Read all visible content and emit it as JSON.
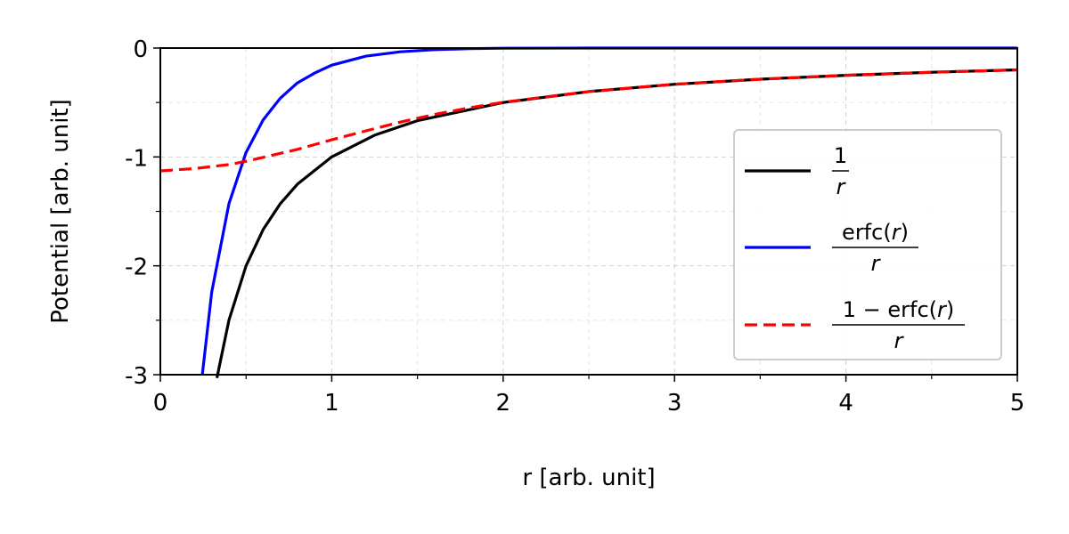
{
  "chart_data": {
    "type": "line",
    "xlabel": "r [arb. unit]",
    "ylabel": "Potential [arb. unit]",
    "xlim": [
      0,
      5
    ],
    "ylim": [
      -3,
      0
    ],
    "xticks": [
      0,
      1,
      2,
      3,
      4,
      5
    ],
    "xtick_labels": [
      "0",
      "1",
      "2",
      "3",
      "4",
      "5"
    ],
    "yticks": [
      0,
      -1,
      -2,
      -3
    ],
    "ytick_labels": [
      "0",
      "-1",
      "-2",
      "-3"
    ],
    "grid": true,
    "legend_position": "right",
    "series": [
      {
        "name": "1/r",
        "legend": {
          "numerator": "1",
          "denominator": "r"
        },
        "color": "#000000",
        "style": "solid",
        "x": [
          0.33,
          0.4,
          0.5,
          0.6,
          0.7,
          0.8,
          1.0,
          1.25,
          1.5,
          2.0,
          2.5,
          3.0,
          3.5,
          4.0,
          4.5,
          5.0
        ],
        "y": [
          -3.03,
          -2.5,
          -2.0,
          -1.667,
          -1.429,
          -1.25,
          -1.0,
          -0.8,
          -0.667,
          -0.5,
          -0.4,
          -0.333,
          -0.286,
          -0.25,
          -0.222,
          -0.2
        ]
      },
      {
        "name": "erfc(r)/r",
        "legend": {
          "numerator": "erfc(r)",
          "denominator": "r"
        },
        "color": "#0000ff",
        "style": "solid",
        "x": [
          0.245,
          0.3,
          0.4,
          0.5,
          0.6,
          0.7,
          0.8,
          0.9,
          1.0,
          1.2,
          1.4,
          1.6,
          1.8,
          2.0,
          2.5,
          3.0,
          4.0,
          5.0
        ],
        "y": [
          -3.0,
          -2.24,
          -1.43,
          -0.96,
          -0.66,
          -0.46,
          -0.32,
          -0.23,
          -0.157,
          -0.074,
          -0.034,
          -0.015,
          -0.006,
          -0.002,
          0.0,
          0.0,
          0.0,
          0.0
        ]
      },
      {
        "name": "(1-erfc(r))/r",
        "legend": {
          "numerator": "1 − erfc(r)",
          "denominator": "r"
        },
        "color": "#ff0000",
        "style": "dashed",
        "x": [
          0.0,
          0.2,
          0.4,
          0.5,
          0.6,
          0.8,
          1.0,
          1.2,
          1.4,
          1.6,
          1.8,
          2.0,
          2.5,
          3.0,
          3.5,
          4.0,
          4.5,
          5.0
        ],
        "y": [
          -1.128,
          -1.107,
          -1.07,
          -1.04,
          -1.004,
          -0.93,
          -0.843,
          -0.76,
          -0.68,
          -0.61,
          -0.55,
          -0.498,
          -0.4,
          -0.333,
          -0.286,
          -0.25,
          -0.222,
          -0.2
        ]
      }
    ]
  }
}
